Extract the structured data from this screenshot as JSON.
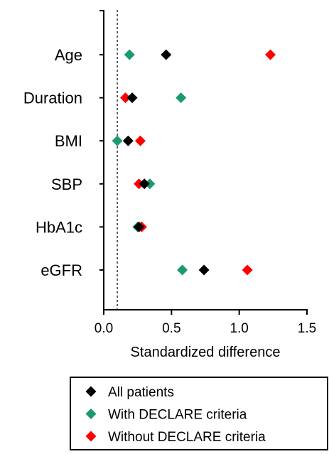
{
  "chart_data": {
    "type": "scatter",
    "orientation": "horizontal-dot-plot",
    "categories": [
      "Age",
      "Duration",
      "BMI",
      "SBP",
      "HbA1c",
      "eGFR"
    ],
    "xlabel": "Standardized difference",
    "ylabel": "",
    "xlim": [
      0.0,
      1.5
    ],
    "xticks": [
      0.0,
      0.5,
      1.0,
      1.5
    ],
    "xtick_labels": [
      "0.0",
      "0.5",
      "1.0",
      "1.5"
    ],
    "reference_line": 0.1,
    "grid": false,
    "legend_position": "bottom",
    "marker": "diamond",
    "series": [
      {
        "name": "All patients",
        "color": "#000000",
        "values": [
          0.46,
          0.21,
          0.18,
          0.3,
          0.26,
          0.74
        ]
      },
      {
        "name": "With DECLARE criteria",
        "color": "#1a9b6c",
        "values": [
          0.19,
          0.57,
          0.1,
          0.34,
          0.25,
          0.58
        ]
      },
      {
        "name": "Without DECLARE criteria",
        "color": "#ff0000",
        "values": [
          1.23,
          0.16,
          0.27,
          0.26,
          0.28,
          1.06
        ]
      }
    ]
  }
}
